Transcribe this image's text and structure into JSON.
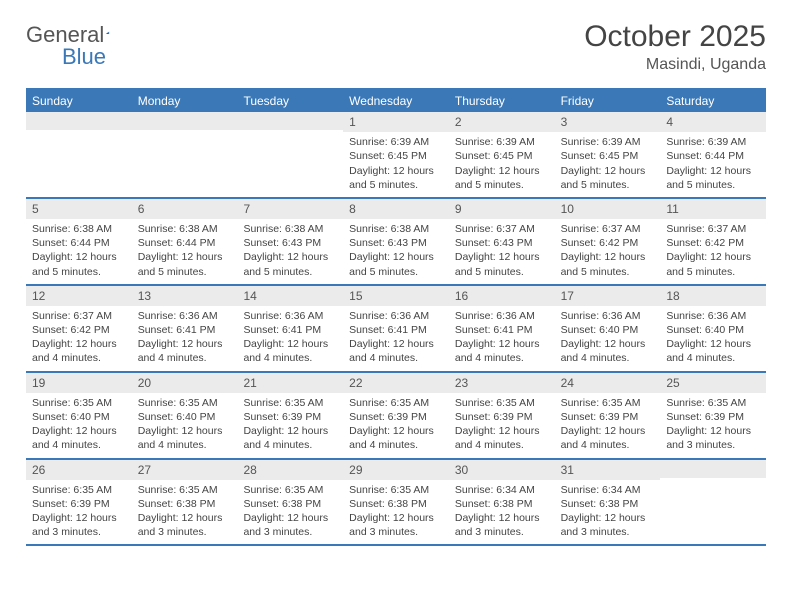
{
  "logo": {
    "word1": "General",
    "word2": "Blue"
  },
  "title": "October 2025",
  "location": "Masindi, Uganda",
  "colors": {
    "accent": "#3a78b8",
    "header_bg": "#3a78b8",
    "daynum_bg": "#ebebeb",
    "text": "#444444",
    "page_bg": "#ffffff"
  },
  "day_names": [
    "Sunday",
    "Monday",
    "Tuesday",
    "Wednesday",
    "Thursday",
    "Friday",
    "Saturday"
  ],
  "weeks": [
    [
      {
        "blank": true
      },
      {
        "blank": true
      },
      {
        "blank": true
      },
      {
        "n": "1",
        "sunrise": "6:39 AM",
        "sunset": "6:45 PM",
        "daylight": "12 hours and 5 minutes."
      },
      {
        "n": "2",
        "sunrise": "6:39 AM",
        "sunset": "6:45 PM",
        "daylight": "12 hours and 5 minutes."
      },
      {
        "n": "3",
        "sunrise": "6:39 AM",
        "sunset": "6:45 PM",
        "daylight": "12 hours and 5 minutes."
      },
      {
        "n": "4",
        "sunrise": "6:39 AM",
        "sunset": "6:44 PM",
        "daylight": "12 hours and 5 minutes."
      }
    ],
    [
      {
        "n": "5",
        "sunrise": "6:38 AM",
        "sunset": "6:44 PM",
        "daylight": "12 hours and 5 minutes."
      },
      {
        "n": "6",
        "sunrise": "6:38 AM",
        "sunset": "6:44 PM",
        "daylight": "12 hours and 5 minutes."
      },
      {
        "n": "7",
        "sunrise": "6:38 AM",
        "sunset": "6:43 PM",
        "daylight": "12 hours and 5 minutes."
      },
      {
        "n": "8",
        "sunrise": "6:38 AM",
        "sunset": "6:43 PM",
        "daylight": "12 hours and 5 minutes."
      },
      {
        "n": "9",
        "sunrise": "6:37 AM",
        "sunset": "6:43 PM",
        "daylight": "12 hours and 5 minutes."
      },
      {
        "n": "10",
        "sunrise": "6:37 AM",
        "sunset": "6:42 PM",
        "daylight": "12 hours and 5 minutes."
      },
      {
        "n": "11",
        "sunrise": "6:37 AM",
        "sunset": "6:42 PM",
        "daylight": "12 hours and 5 minutes."
      }
    ],
    [
      {
        "n": "12",
        "sunrise": "6:37 AM",
        "sunset": "6:42 PM",
        "daylight": "12 hours and 4 minutes."
      },
      {
        "n": "13",
        "sunrise": "6:36 AM",
        "sunset": "6:41 PM",
        "daylight": "12 hours and 4 minutes."
      },
      {
        "n": "14",
        "sunrise": "6:36 AM",
        "sunset": "6:41 PM",
        "daylight": "12 hours and 4 minutes."
      },
      {
        "n": "15",
        "sunrise": "6:36 AM",
        "sunset": "6:41 PM",
        "daylight": "12 hours and 4 minutes."
      },
      {
        "n": "16",
        "sunrise": "6:36 AM",
        "sunset": "6:41 PM",
        "daylight": "12 hours and 4 minutes."
      },
      {
        "n": "17",
        "sunrise": "6:36 AM",
        "sunset": "6:40 PM",
        "daylight": "12 hours and 4 minutes."
      },
      {
        "n": "18",
        "sunrise": "6:36 AM",
        "sunset": "6:40 PM",
        "daylight": "12 hours and 4 minutes."
      }
    ],
    [
      {
        "n": "19",
        "sunrise": "6:35 AM",
        "sunset": "6:40 PM",
        "daylight": "12 hours and 4 minutes."
      },
      {
        "n": "20",
        "sunrise": "6:35 AM",
        "sunset": "6:40 PM",
        "daylight": "12 hours and 4 minutes."
      },
      {
        "n": "21",
        "sunrise": "6:35 AM",
        "sunset": "6:39 PM",
        "daylight": "12 hours and 4 minutes."
      },
      {
        "n": "22",
        "sunrise": "6:35 AM",
        "sunset": "6:39 PM",
        "daylight": "12 hours and 4 minutes."
      },
      {
        "n": "23",
        "sunrise": "6:35 AM",
        "sunset": "6:39 PM",
        "daylight": "12 hours and 4 minutes."
      },
      {
        "n": "24",
        "sunrise": "6:35 AM",
        "sunset": "6:39 PM",
        "daylight": "12 hours and 4 minutes."
      },
      {
        "n": "25",
        "sunrise": "6:35 AM",
        "sunset": "6:39 PM",
        "daylight": "12 hours and 3 minutes."
      }
    ],
    [
      {
        "n": "26",
        "sunrise": "6:35 AM",
        "sunset": "6:39 PM",
        "daylight": "12 hours and 3 minutes."
      },
      {
        "n": "27",
        "sunrise": "6:35 AM",
        "sunset": "6:38 PM",
        "daylight": "12 hours and 3 minutes."
      },
      {
        "n": "28",
        "sunrise": "6:35 AM",
        "sunset": "6:38 PM",
        "daylight": "12 hours and 3 minutes."
      },
      {
        "n": "29",
        "sunrise": "6:35 AM",
        "sunset": "6:38 PM",
        "daylight": "12 hours and 3 minutes."
      },
      {
        "n": "30",
        "sunrise": "6:34 AM",
        "sunset": "6:38 PM",
        "daylight": "12 hours and 3 minutes."
      },
      {
        "n": "31",
        "sunrise": "6:34 AM",
        "sunset": "6:38 PM",
        "daylight": "12 hours and 3 minutes."
      },
      {
        "blank": true
      }
    ]
  ],
  "labels": {
    "sunrise": "Sunrise:",
    "sunset": "Sunset:",
    "daylight": "Daylight:"
  }
}
